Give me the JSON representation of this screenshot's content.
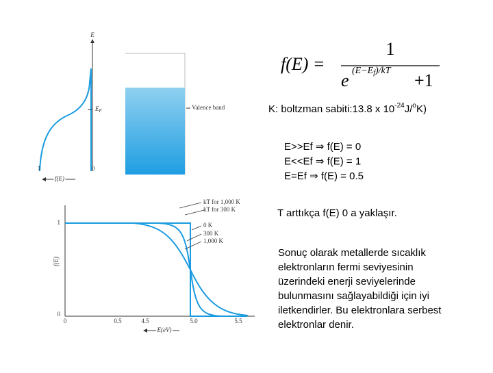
{
  "figure_band": {
    "axis_label": "E",
    "fermi_label": "E",
    "fermi_sub": "F",
    "band_label": "Valence band",
    "tick_left": "1",
    "tick_right": "0",
    "x_label": "f(E)"
  },
  "figure_fermi": {
    "curve_labels": [
      "kT for 1,000 K",
      "kT for 300 K",
      "0 K",
      "300 K",
      "1,000 K"
    ],
    "y_ticks": [
      "1",
      "0"
    ],
    "x_ticks": [
      "0",
      "0.5",
      "4.5",
      "5.0",
      "5.5"
    ],
    "y_label": "f(E)",
    "x_label": "E(eV)"
  },
  "formula": {
    "lhs": "f(E) =",
    "numerator": "1",
    "base": "e",
    "exponent": "(E−E",
    "exponent_sub": "f",
    "exponent_tail": ")/kT",
    "plus": "+1"
  },
  "boltzmann": {
    "text": "K: boltzman sabiti:13.8 x 10",
    "exp": "-24",
    "unit": "J/",
    "deg": "o",
    "tail": "K)"
  },
  "cases": [
    "E>>Ef ⇒ f(E) = 0",
    "E<<Ef ⇒ f(E) = 1",
    "E=Ef  ⇒ f(E) = 0.5"
  ],
  "note": "T arttıkça f(E) 0 a yaklaşır.",
  "paragraph": [
    "Sonuç olarak metallerde sıcaklık",
    "elektronların fermi seviyesinin",
    "üzerindeki enerji seviyelerinde",
    "bulunmasını sağlayabildiği için iyi",
    "iletkendirler. Bu elektronlara serbest",
    "elektronlar denir."
  ]
}
